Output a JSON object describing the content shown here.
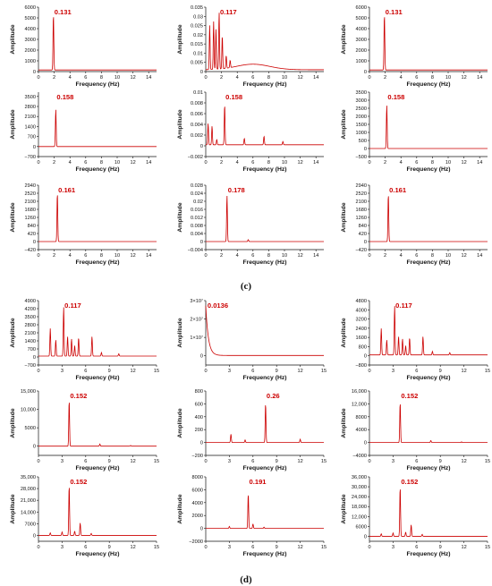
{
  "colors": {
    "line": "#cc0000",
    "axis": "#111111",
    "annotation": "#cc0000"
  },
  "captions": [
    "(c)",
    "(d)"
  ],
  "chart_data": [
    {
      "type": "line",
      "xlabel": "Frequency (Hz)",
      "ylabel": "Amplitude",
      "xlim": [
        0,
        15
      ],
      "xticks": [
        0,
        2,
        4,
        6,
        8,
        10,
        12,
        14
      ],
      "ylim": [
        0,
        6000
      ],
      "yticks": [
        0,
        1000,
        2000,
        3000,
        4000,
        5000,
        6000
      ],
      "annotation": {
        "text": "0.131",
        "x": 1.9
      },
      "peaks": [
        {
          "x": 1.9,
          "y": 5200
        }
      ],
      "baseline": 150
    },
    {
      "type": "line",
      "xlabel": "Frequency (Hz)",
      "ylabel": "Amplitude",
      "xlim": [
        0,
        15
      ],
      "xticks": [
        0,
        2,
        4,
        6,
        8,
        10,
        12,
        14
      ],
      "ylim": [
        0,
        0.035
      ],
      "yticks": [
        0,
        0.005,
        0.01,
        0.015,
        0.02,
        0.025,
        0.03,
        0.035
      ],
      "annotation": {
        "text": "0.117",
        "x": 1.7
      },
      "peaks": [
        {
          "x": 0.5,
          "y": 0.024
        },
        {
          "x": 1.0,
          "y": 0.026
        },
        {
          "x": 1.3,
          "y": 0.022
        },
        {
          "x": 1.7,
          "y": 0.031
        },
        {
          "x": 2.1,
          "y": 0.018
        },
        {
          "x": 2.6,
          "y": 0.007
        },
        {
          "x": 3.1,
          "y": 0.004
        }
      ],
      "baseline": 0.001,
      "hump": {
        "x": 6,
        "y": 0.003,
        "w": 3
      }
    },
    {
      "type": "line",
      "xlabel": "Frequency (Hz)",
      "ylabel": "Amplitude",
      "xlim": [
        0,
        15
      ],
      "xticks": [
        0,
        2,
        4,
        6,
        8,
        10,
        12,
        14
      ],
      "ylim": [
        0,
        6000
      ],
      "yticks": [
        0,
        1000,
        2000,
        3000,
        4000,
        5000,
        6000
      ],
      "annotation": {
        "text": "0.131",
        "x": 1.9
      },
      "peaks": [
        {
          "x": 1.9,
          "y": 5200
        }
      ],
      "baseline": 150
    },
    {
      "type": "line",
      "xlabel": "Frequency (Hz)",
      "ylabel": "Amplitude",
      "xlim": [
        0,
        15
      ],
      "xticks": [
        0,
        2,
        4,
        6,
        8,
        10,
        12,
        14
      ],
      "ylim": [
        -700,
        3800
      ],
      "yticks": [
        -700,
        0,
        700,
        1400,
        2100,
        2800,
        3500
      ],
      "annotation": {
        "text": "0.158",
        "x": 2.2
      },
      "peaks": [
        {
          "x": 2.2,
          "y": 2600
        }
      ],
      "baseline": 0
    },
    {
      "type": "line",
      "xlabel": "Frequency (Hz)",
      "ylabel": "Amplitude",
      "xlim": [
        0,
        15
      ],
      "xticks": [
        0,
        2,
        4,
        6,
        8,
        10,
        12,
        14
      ],
      "ylim": [
        -0.002,
        0.01
      ],
      "yticks": [
        -0.002,
        0,
        0.002,
        0.004,
        0.006,
        0.008,
        0.01
      ],
      "annotation": {
        "text": "0.158",
        "x": 2.4
      },
      "peaks": [
        {
          "x": 0.3,
          "y": 0.004
        },
        {
          "x": 0.8,
          "y": 0.0035
        },
        {
          "x": 1.4,
          "y": 0.001
        },
        {
          "x": 2.4,
          "y": 0.0075
        },
        {
          "x": 4.9,
          "y": 0.0012
        },
        {
          "x": 7.4,
          "y": 0.0016
        },
        {
          "x": 9.8,
          "y": 0.0006
        }
      ],
      "baseline": 0.0002
    },
    {
      "type": "line",
      "xlabel": "Frequency (Hz)",
      "ylabel": "Amplitude",
      "xlim": [
        0,
        15
      ],
      "xticks": [
        0,
        2,
        4,
        6,
        8,
        10,
        12,
        14
      ],
      "ylim": [
        -500,
        3500
      ],
      "yticks": [
        -500,
        0,
        500,
        1000,
        1500,
        2000,
        2500,
        3000,
        3500
      ],
      "annotation": {
        "text": "0.158",
        "x": 2.2
      },
      "peaks": [
        {
          "x": 2.2,
          "y": 2700
        }
      ],
      "baseline": 0
    },
    {
      "type": "line",
      "xlabel": "Frequency (Hz)",
      "ylabel": "Amplitude",
      "xlim": [
        0,
        15
      ],
      "xticks": [
        0,
        2,
        4,
        6,
        8,
        10,
        12,
        14
      ],
      "ylim": [
        -420,
        2940
      ],
      "yticks": [
        -420,
        0,
        420,
        840,
        1260,
        1680,
        2100,
        2520,
        2940
      ],
      "annotation": {
        "text": "0.161",
        "x": 2.4
      },
      "peaks": [
        {
          "x": 2.4,
          "y": 2550
        }
      ],
      "baseline": 0
    },
    {
      "type": "line",
      "xlabel": "Frequency (Hz)",
      "ylabel": "Amplitude",
      "xlim": [
        0,
        15
      ],
      "xticks": [
        0,
        2,
        4,
        6,
        8,
        10,
        12,
        14
      ],
      "ylim": [
        -0.004,
        0.028
      ],
      "yticks": [
        -0.004,
        0,
        0.004,
        0.008,
        0.012,
        0.016,
        0.02,
        0.024,
        0.028
      ],
      "annotation": {
        "text": "0.178",
        "x": 2.7
      },
      "peaks": [
        {
          "x": 2.7,
          "y": 0.023
        },
        {
          "x": 5.4,
          "y": 0.001
        }
      ],
      "baseline": 0
    },
    {
      "type": "line",
      "xlabel": "Frequency (Hz)",
      "ylabel": "Amplitude",
      "xlim": [
        0,
        15
      ],
      "xticks": [
        0,
        2,
        4,
        6,
        8,
        10,
        12,
        14
      ],
      "ylim": [
        -420,
        2940
      ],
      "yticks": [
        -420,
        0,
        420,
        840,
        1260,
        1680,
        2100,
        2520,
        2940
      ],
      "annotation": {
        "text": "0.161",
        "x": 2.4
      },
      "peaks": [
        {
          "x": 2.4,
          "y": 2500
        }
      ],
      "baseline": 0
    },
    {
      "type": "line",
      "xlabel": "Frequency (Hz)",
      "ylabel": "Amplitude",
      "xlim": [
        0,
        15
      ],
      "xticks": [
        0,
        3,
        6,
        9,
        12,
        15
      ],
      "ylim": [
        -700,
        4900
      ],
      "yticks": [
        -700,
        0,
        700,
        1400,
        2100,
        2800,
        3500,
        4200,
        4900
      ],
      "annotation": {
        "text": "0.117",
        "x": 3.2
      },
      "peaks": [
        {
          "x": 1.5,
          "y": 2400
        },
        {
          "x": 2.2,
          "y": 1400
        },
        {
          "x": 3.2,
          "y": 4300
        },
        {
          "x": 3.7,
          "y": 1700
        },
        {
          "x": 4.2,
          "y": 1500
        },
        {
          "x": 4.6,
          "y": 900
        },
        {
          "x": 5.1,
          "y": 1600
        },
        {
          "x": 6.8,
          "y": 1700
        },
        {
          "x": 8.0,
          "y": 300
        },
        {
          "x": 10.2,
          "y": 200
        }
      ],
      "baseline": 80
    },
    {
      "type": "line",
      "xlabel": "Frequency (Hz)",
      "ylabel": "Amplitude",
      "xlim": [
        0,
        15
      ],
      "xticks": [
        0,
        3,
        6,
        9,
        12,
        15
      ],
      "ylim": [
        -0.5,
        3
      ],
      "yticks": [
        0,
        1,
        2,
        3
      ],
      "ytick_labels": [
        "0",
        "1×10⁷",
        "2×10⁷",
        "3×10⁷"
      ],
      "annotation": {
        "text": "0.0136",
        "x": 0.1
      },
      "decay": {
        "y0": 2.7,
        "k": 3.0
      },
      "baseline": 0.02
    },
    {
      "type": "line",
      "xlabel": "Frequency (Hz)",
      "ylabel": "Amplitude",
      "xlim": [
        0,
        15
      ],
      "xticks": [
        0,
        3,
        6,
        9,
        12,
        15
      ],
      "ylim": [
        -800,
        4800
      ],
      "yticks": [
        -800,
        0,
        800,
        1600,
        2400,
        3200,
        4000,
        4800
      ],
      "annotation": {
        "text": "0.117",
        "x": 3.2
      },
      "peaks": [
        {
          "x": 1.5,
          "y": 2300
        },
        {
          "x": 2.2,
          "y": 1300
        },
        {
          "x": 3.2,
          "y": 4300
        },
        {
          "x": 3.7,
          "y": 1600
        },
        {
          "x": 4.2,
          "y": 1400
        },
        {
          "x": 4.6,
          "y": 800
        },
        {
          "x": 5.1,
          "y": 1500
        },
        {
          "x": 6.8,
          "y": 1600
        },
        {
          "x": 8.0,
          "y": 300
        },
        {
          "x": 10.2,
          "y": 200
        }
      ],
      "baseline": 80
    },
    {
      "type": "line",
      "xlabel": "Frequency (Hz)",
      "ylabel": "Amplitude",
      "xlim": [
        0,
        15
      ],
      "xticks": [
        0,
        3,
        6,
        9,
        12,
        15
      ],
      "ylim": [
        -2500,
        15000
      ],
      "yticks": [
        0,
        5000,
        10000,
        15000
      ],
      "ytick_labels": [
        "0",
        "5000",
        "10,000",
        "15,000"
      ],
      "annotation": {
        "text": "0.152",
        "x": 3.9
      },
      "peaks": [
        {
          "x": 3.9,
          "y": 12500
        },
        {
          "x": 7.8,
          "y": 600
        },
        {
          "x": 11.7,
          "y": 200
        }
      ],
      "baseline": 0
    },
    {
      "type": "line",
      "xlabel": "Frequency (Hz)",
      "ylabel": "Amplitude",
      "xlim": [
        0,
        15
      ],
      "xticks": [
        0,
        3,
        6,
        9,
        12,
        15
      ],
      "ylim": [
        -200,
        800
      ],
      "yticks": [
        -200,
        0,
        200,
        400,
        600,
        800
      ],
      "annotation": {
        "text": "0.26",
        "x": 7.6
      },
      "peaks": [
        {
          "x": 3.2,
          "y": 130
        },
        {
          "x": 5.0,
          "y": 40
        },
        {
          "x": 7.6,
          "y": 610
        },
        {
          "x": 12.0,
          "y": 50
        }
      ],
      "baseline": 0
    },
    {
      "type": "line",
      "xlabel": "Frequency (Hz)",
      "ylabel": "Amplitude",
      "xlim": [
        0,
        15
      ],
      "xticks": [
        0,
        3,
        6,
        9,
        12,
        15
      ],
      "ylim": [
        -4000,
        16000
      ],
      "yticks": [
        -4000,
        0,
        4000,
        8000,
        12000,
        16000
      ],
      "ytick_labels": [
        "−4000",
        "0",
        "4000",
        "8000",
        "12,000",
        "16,000"
      ],
      "annotation": {
        "text": "0.152",
        "x": 3.9
      },
      "peaks": [
        {
          "x": 3.9,
          "y": 12500
        },
        {
          "x": 7.8,
          "y": 600
        },
        {
          "x": 11.7,
          "y": 200
        }
      ],
      "baseline": 0
    },
    {
      "type": "line",
      "xlabel": "Frequency (Hz)",
      "ylabel": "Amplitude",
      "xlim": [
        0,
        15
      ],
      "xticks": [
        0,
        3,
        6,
        9,
        12,
        15
      ],
      "ylim": [
        -3500,
        35000
      ],
      "yticks": [
        0,
        7000,
        14000,
        21000,
        28000,
        35000
      ],
      "ytick_labels": [
        "0",
        "7000",
        "14,000",
        "21,000",
        "28,000",
        "35,000"
      ],
      "annotation": {
        "text": "0.152",
        "x": 3.9
      },
      "peaks": [
        {
          "x": 1.5,
          "y": 1500
        },
        {
          "x": 3.0,
          "y": 2000
        },
        {
          "x": 3.9,
          "y": 30000
        },
        {
          "x": 4.6,
          "y": 2500
        },
        {
          "x": 5.3,
          "y": 7500
        },
        {
          "x": 6.7,
          "y": 1200
        }
      ],
      "baseline": 0
    },
    {
      "type": "line",
      "xlabel": "Frequency (Hz)",
      "ylabel": "Amplitude",
      "xlim": [
        0,
        15
      ],
      "xticks": [
        0,
        3,
        6,
        9,
        12,
        15
      ],
      "ylim": [
        -2000,
        8000
      ],
      "yticks": [
        -2000,
        0,
        2000,
        4000,
        6000,
        8000
      ],
      "annotation": {
        "text": "0.191",
        "x": 5.4
      },
      "peaks": [
        {
          "x": 3.0,
          "y": 300
        },
        {
          "x": 5.4,
          "y": 5400
        },
        {
          "x": 6.0,
          "y": 700
        },
        {
          "x": 7.4,
          "y": 200
        }
      ],
      "baseline": 0
    },
    {
      "type": "line",
      "xlabel": "Frequency (Hz)",
      "ylabel": "Amplitude",
      "xlim": [
        0,
        15
      ],
      "xticks": [
        0,
        3,
        6,
        9,
        12,
        15
      ],
      "ylim": [
        -3000,
        36000
      ],
      "yticks": [
        0,
        6000,
        12000,
        18000,
        24000,
        30000,
        36000
      ],
      "ytick_labels": [
        "0",
        "6000",
        "12,000",
        "18,000",
        "24,000",
        "30,000",
        "36,000"
      ],
      "annotation": {
        "text": "0.152",
        "x": 3.9
      },
      "peaks": [
        {
          "x": 1.5,
          "y": 1500
        },
        {
          "x": 3.0,
          "y": 2000
        },
        {
          "x": 3.9,
          "y": 30000
        },
        {
          "x": 4.6,
          "y": 2500
        },
        {
          "x": 5.3,
          "y": 7000
        },
        {
          "x": 6.7,
          "y": 1200
        }
      ],
      "baseline": 0
    }
  ]
}
